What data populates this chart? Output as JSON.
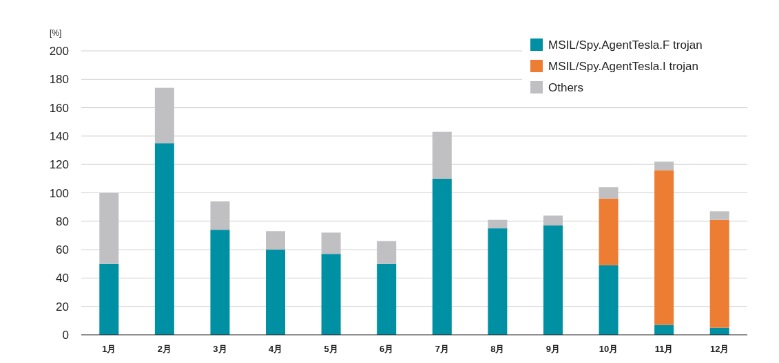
{
  "chart_data": {
    "type": "bar",
    "stacked": true,
    "ylabel": "[%]",
    "categories": [
      "1月",
      "2月",
      "3月",
      "4月",
      "5月",
      "6月",
      "7月",
      "8月",
      "9月",
      "10月",
      "11月",
      "12月"
    ],
    "series": [
      {
        "name": "MSIL/Spy.AgentTesla.F trojan",
        "color": "#0090a3",
        "values": [
          50,
          135,
          74,
          60,
          57,
          50,
          110,
          75,
          77,
          49,
          7,
          5
        ]
      },
      {
        "name": "MSIL/Spy.AgentTesla.I trojan",
        "color": "#ed7d32",
        "values": [
          null,
          null,
          null,
          null,
          null,
          null,
          null,
          null,
          null,
          47,
          109,
          76
        ]
      },
      {
        "name": "Others",
        "color": "#c0c0c2",
        "values": [
          50,
          39,
          20,
          13,
          15,
          16,
          33,
          6,
          7,
          8,
          6,
          6
        ]
      }
    ],
    "ylim": [
      0,
      200
    ],
    "yticks": [
      0,
      20,
      40,
      60,
      80,
      100,
      120,
      140,
      160,
      180,
      200
    ],
    "grid": "y",
    "legend": "top right"
  }
}
